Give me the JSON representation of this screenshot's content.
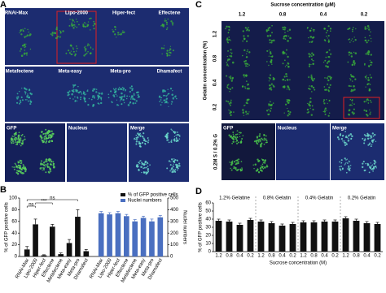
{
  "figure": {
    "panel_labels": [
      "A",
      "B",
      "C",
      "D"
    ],
    "a_top_labels": [
      "RNAi-Max",
      "Lipo-2000",
      "Hiper-fect",
      "Effectene"
    ],
    "a_mid_labels": [
      "Metafectene",
      "Meta-easy",
      "Meta-pro",
      "Dhamafect"
    ],
    "a_bottom_labels": [
      "GFP",
      "Nucleus",
      "Merge"
    ],
    "c_col_title": "Sucrose concentration (μM)",
    "c_col_labels": [
      "1.2",
      "0.8",
      "0.4",
      "0.2"
    ],
    "c_row_title": "Gelatin concentration (%)",
    "c_row_labels": [
      "1.2",
      "0.8",
      "0.4",
      "0.2"
    ],
    "c_bottom_labels": [
      "GFP",
      "Nucleus",
      "Merge"
    ],
    "c_bottom_side": "0.2M S / 0.2% G"
  },
  "chart_data": [
    {
      "type": "bar",
      "y_label": "% of GFP positive cells",
      "y2_label": "Nuclei numbers",
      "categories": [
        "RNAi-Max",
        "Lipo-2000",
        "Hiper-fect",
        "Effectene",
        "Metafectene",
        "Meta-easy",
        "Meta-pro",
        "Dhamafect"
      ],
      "series": [
        {
          "name": "% of GFP positive cells",
          "color": "#111111",
          "values": [
            12,
            55,
            2,
            51,
            4,
            23,
            68,
            9
          ],
          "errors": [
            5,
            9,
            1,
            4,
            2,
            6,
            12,
            3
          ]
        },
        {
          "name": "Nuclei numbers",
          "color": "#4a6fc0",
          "axis": "y2",
          "values": [
            370,
            360,
            370,
            345,
            300,
            330,
            300,
            335
          ],
          "errors": [
            15,
            15,
            15,
            15,
            15,
            15,
            20,
            15
          ]
        }
      ],
      "ylim": [
        0,
        100
      ],
      "yticks": [
        0,
        20,
        40,
        60,
        80,
        100
      ],
      "y2lim": [
        0,
        500
      ],
      "y2ticks": [
        0,
        100,
        200,
        300,
        400,
        500
      ],
      "annotations": [
        "ns",
        "***",
        "ns"
      ],
      "legend": "upper right"
    },
    {
      "type": "bar",
      "y_label": "% of GFP positive cells",
      "x_label": "Sucrose concentration (M)",
      "groups": [
        "1.2% Gelatine",
        "0.8% Gelatin",
        "0.4% Gelatin",
        "0.2% Gelatin"
      ],
      "categories": [
        "1.2",
        "0.8",
        "0.4",
        "0.2",
        "1.2",
        "0.8",
        "0.4",
        "0.2",
        "1.2",
        "0.8",
        "0.4",
        "0.2",
        "1.2",
        "0.8",
        "0.4",
        "0.2"
      ],
      "color": "#111111",
      "values": [
        38,
        37,
        33,
        39,
        37,
        35,
        32,
        34,
        36,
        36,
        37,
        37,
        41,
        38,
        35,
        34
      ],
      "errors": [
        2,
        2,
        2,
        2,
        2,
        2,
        2,
        2,
        2,
        2,
        2,
        2,
        2,
        2,
        2,
        2
      ],
      "ylim": [
        0,
        60
      ],
      "yticks": [
        0,
        10,
        20,
        30,
        40,
        50,
        60
      ]
    }
  ]
}
